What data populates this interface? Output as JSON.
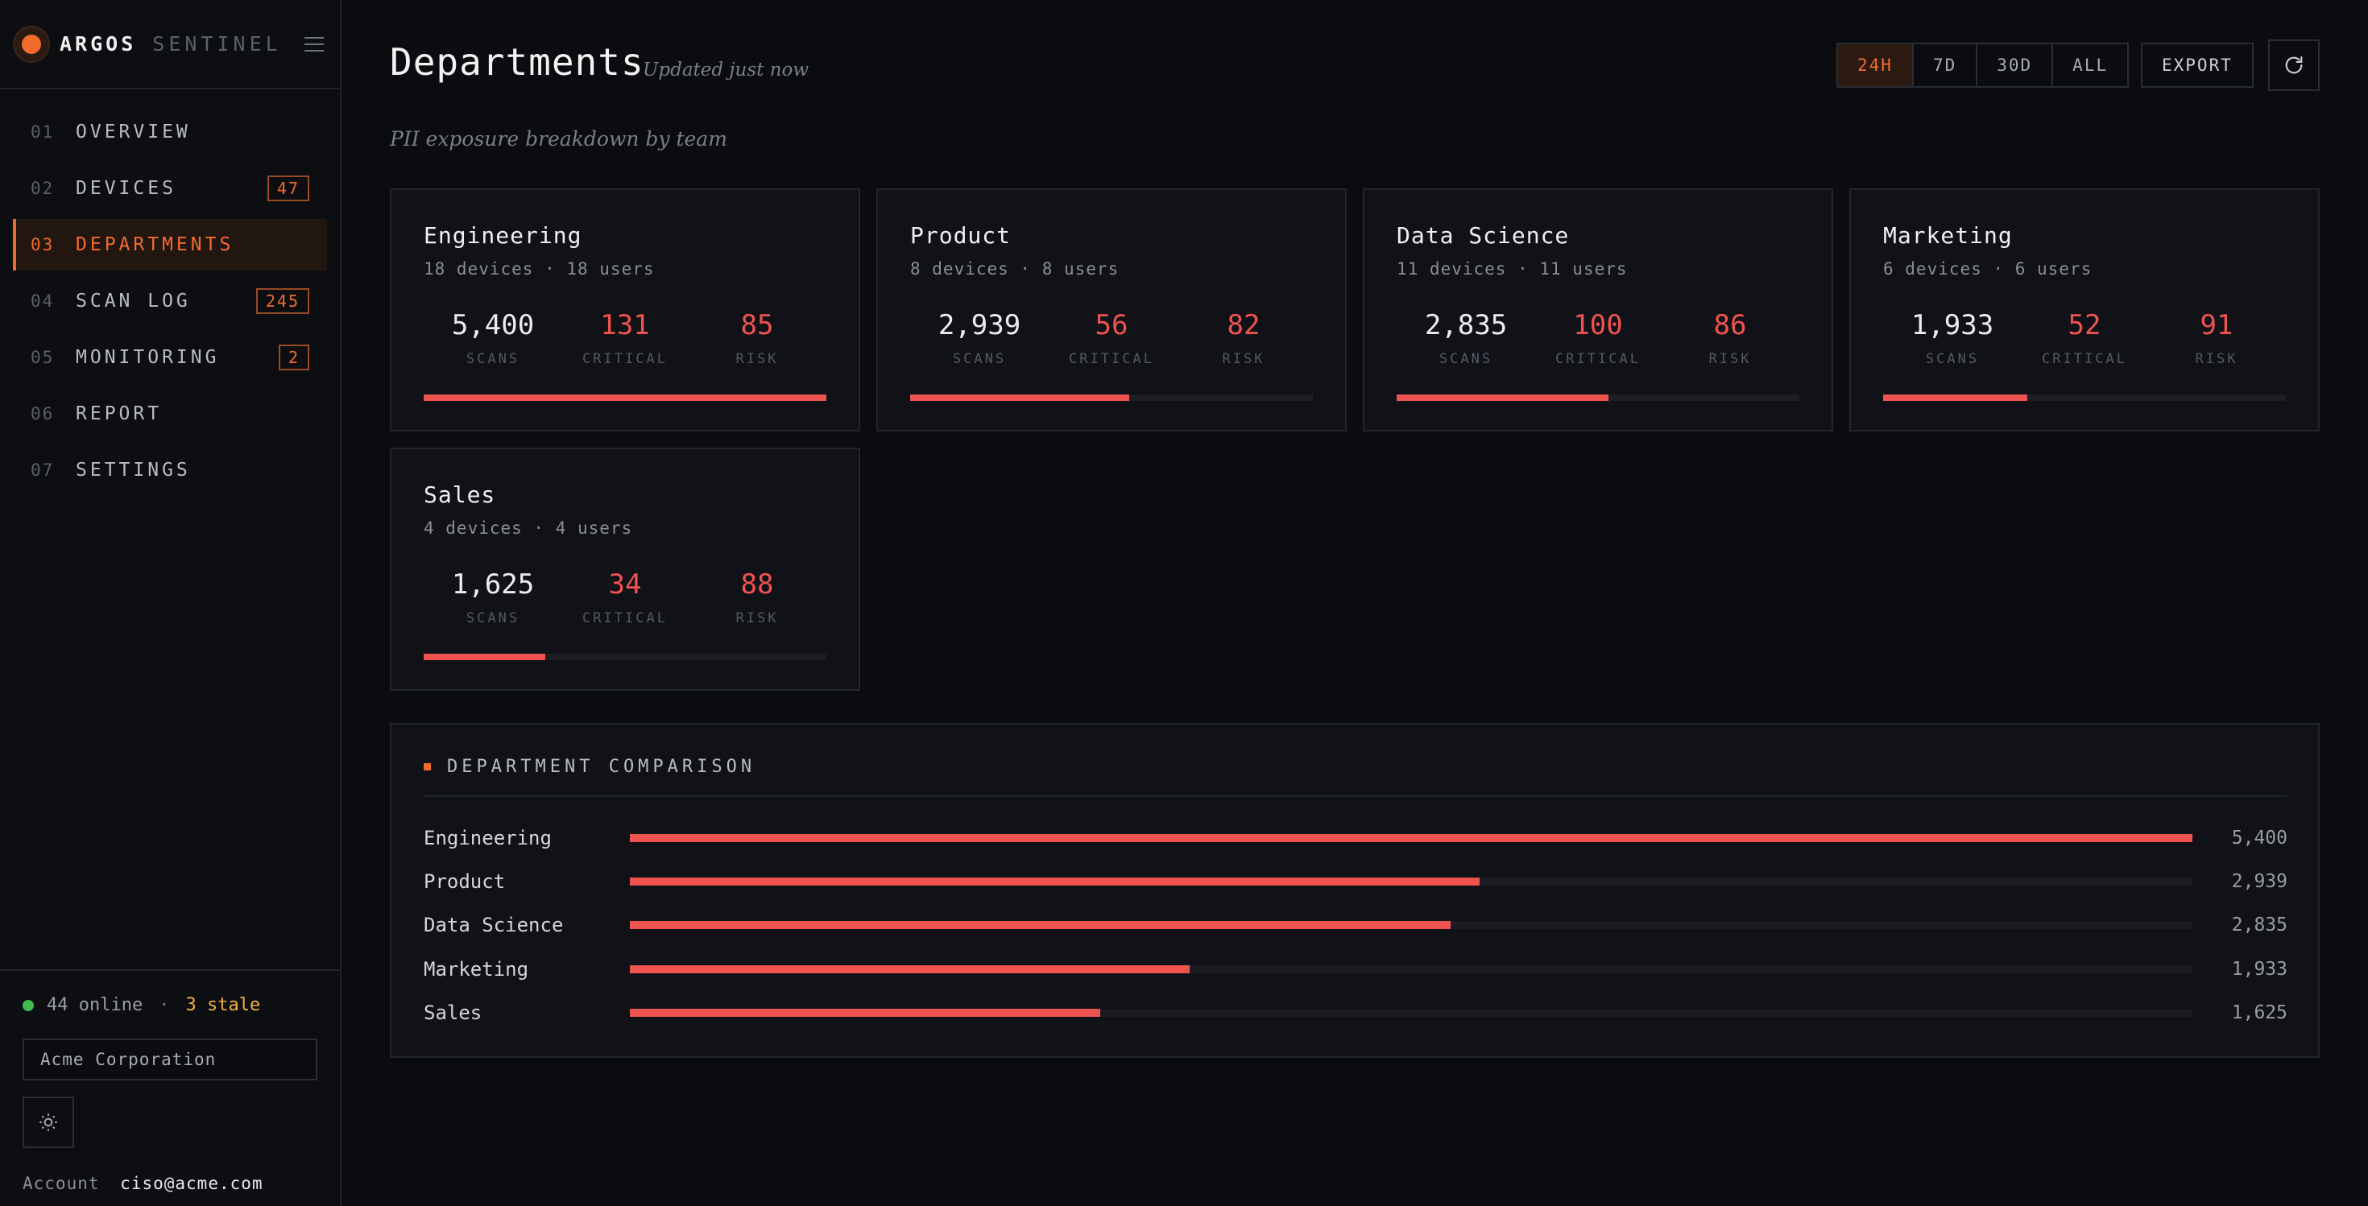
{
  "brand": {
    "name": "ARGOS",
    "sub": "SENTINEL"
  },
  "nav": [
    {
      "num": "01",
      "label": "OVERVIEW",
      "badge": null,
      "active": false
    },
    {
      "num": "02",
      "label": "DEVICES",
      "badge": "47",
      "active": false
    },
    {
      "num": "03",
      "label": "DEPARTMENTS",
      "badge": null,
      "active": true
    },
    {
      "num": "04",
      "label": "SCAN LOG",
      "badge": "245",
      "active": false
    },
    {
      "num": "05",
      "label": "MONITORING",
      "badge": "2",
      "active": false
    },
    {
      "num": "06",
      "label": "REPORT",
      "badge": null,
      "active": false
    },
    {
      "num": "07",
      "label": "SETTINGS",
      "badge": null,
      "active": false
    }
  ],
  "footer": {
    "online": "44 online",
    "separator": "·",
    "stale": "3 stale",
    "org": "Acme Corporation",
    "account_label": "Account",
    "account_email": "ciso@acme.com"
  },
  "header": {
    "title": "Departments",
    "updated": "Updated just now",
    "subtitle": "PII exposure breakdown by team",
    "ranges": [
      "24H",
      "7D",
      "30D",
      "ALL"
    ],
    "active_range": "24H",
    "export": "EXPORT"
  },
  "labels": {
    "scans": "SCANS",
    "critical": "CRITICAL",
    "risk": "RISK"
  },
  "departments": [
    {
      "name": "Engineering",
      "meta": "18 devices · 18 users",
      "scans": "5,400",
      "critical": "131",
      "risk": "85",
      "share": 1.0
    },
    {
      "name": "Product",
      "meta": "8 devices · 8 users",
      "scans": "2,939",
      "critical": "56",
      "risk": "82",
      "share": 0.544
    },
    {
      "name": "Data Science",
      "meta": "11 devices · 11 users",
      "scans": "2,835",
      "critical": "100",
      "risk": "86",
      "share": 0.525
    },
    {
      "name": "Marketing",
      "meta": "6 devices · 6 users",
      "scans": "1,933",
      "critical": "52",
      "risk": "91",
      "share": 0.358
    },
    {
      "name": "Sales",
      "meta": "4 devices · 4 users",
      "scans": "1,625",
      "critical": "34",
      "risk": "88",
      "share": 0.301
    }
  ],
  "comparison": {
    "title": "DEPARTMENT COMPARISON",
    "rows": [
      {
        "name": "Engineering",
        "value": "5,400",
        "share": 1.0
      },
      {
        "name": "Product",
        "value": "2,939",
        "share": 0.544
      },
      {
        "name": "Data Science",
        "value": "2,835",
        "share": 0.525
      },
      {
        "name": "Marketing",
        "value": "1,933",
        "share": 0.358
      },
      {
        "name": "Sales",
        "value": "1,625",
        "share": 0.301
      }
    ]
  },
  "colors": {
    "accent": "#f26b2e",
    "critical": "#ef5350",
    "online": "#3fb950",
    "stale": "#f2b33a"
  },
  "icons": {
    "brand": "argos-logo-icon",
    "menu": "hamburger-icon",
    "theme": "sun-icon",
    "refresh": "refresh-icon"
  }
}
